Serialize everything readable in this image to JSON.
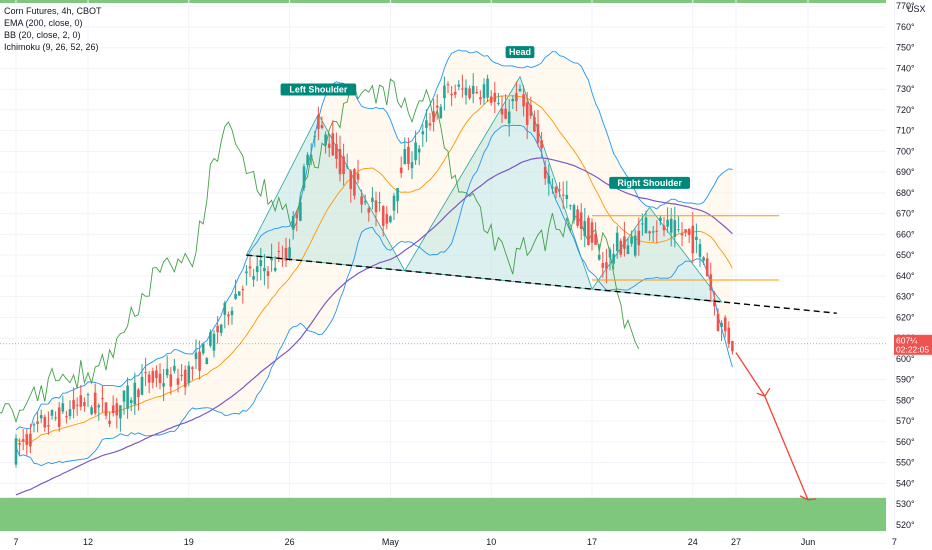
{
  "legend": {
    "symbol": "Corn Futures, 4h, CBOT",
    "ema": "EMA (200, close, 0)",
    "bb": "BB (20, close, 2, 0)",
    "ichimoku": "Ichimoku (9, 26, 52, 26)"
  },
  "currency": "USX",
  "price_tag": {
    "price": "607¼",
    "countdown": "02:22:05",
    "value": 607.25
  },
  "annotations": {
    "left_shoulder": "Left Shoulder",
    "head": "Head",
    "right_shoulder": "Right Shoulder"
  },
  "chart_data": {
    "type": "candlestick",
    "title": "Corn Futures, 4h, CBOT",
    "ylim": [
      517,
      773
    ],
    "y_ticks": [
      "770°",
      "760°",
      "750°",
      "740°",
      "730°",
      "720°",
      "710°",
      "700°",
      "690°",
      "680°",
      "670°",
      "660°",
      "650°",
      "640°",
      "630°",
      "620°",
      "610°",
      "600°",
      "590°",
      "580°",
      "570°",
      "560°",
      "550°",
      "540°",
      "530°",
      "520°"
    ],
    "y_tick_values": [
      770,
      760,
      750,
      740,
      730,
      720,
      710,
      700,
      690,
      680,
      670,
      660,
      650,
      640,
      630,
      620,
      610,
      600,
      590,
      580,
      570,
      560,
      550,
      540,
      530,
      520
    ],
    "x_ticks": [
      "7",
      "12",
      "19",
      "26",
      "May",
      "10",
      "17",
      "24",
      "27",
      "Jun",
      "7"
    ],
    "x_tick_dates": [
      "2021-04-07",
      "2021-04-12",
      "2021-04-19",
      "2021-04-26",
      "2021-05-03",
      "2021-05-10",
      "2021-05-17",
      "2021-05-24",
      "2021-05-27",
      "2021-06-01",
      "2021-06-07"
    ],
    "close_path": [
      {
        "date": "2021-04-07",
        "close": 555
      },
      {
        "date": "2021-04-09",
        "close": 568
      },
      {
        "date": "2021-04-12",
        "close": 579
      },
      {
        "date": "2021-04-14",
        "close": 574
      },
      {
        "date": "2021-04-16",
        "close": 589
      },
      {
        "date": "2021-04-19",
        "close": 592
      },
      {
        "date": "2021-04-20",
        "close": 600
      },
      {
        "date": "2021-04-21",
        "close": 610
      },
      {
        "date": "2021-04-22",
        "close": 625
      },
      {
        "date": "2021-04-23",
        "close": 638
      },
      {
        "date": "2021-04-26",
        "close": 650
      },
      {
        "date": "2021-04-27",
        "close": 680
      },
      {
        "date": "2021-04-28",
        "close": 712
      },
      {
        "date": "2021-04-29",
        "close": 705
      },
      {
        "date": "2021-04-30",
        "close": 690
      },
      {
        "date": "2021-05-03",
        "close": 666
      },
      {
        "date": "2021-05-04",
        "close": 695
      },
      {
        "date": "2021-05-05",
        "close": 700
      },
      {
        "date": "2021-05-06",
        "close": 715
      },
      {
        "date": "2021-05-07",
        "close": 728
      },
      {
        "date": "2021-05-10",
        "close": 731
      },
      {
        "date": "2021-05-11",
        "close": 715
      },
      {
        "date": "2021-05-12",
        "close": 728
      },
      {
        "date": "2021-05-13",
        "close": 715
      },
      {
        "date": "2021-05-14",
        "close": 690
      },
      {
        "date": "2021-05-17",
        "close": 660
      },
      {
        "date": "2021-05-18",
        "close": 645
      },
      {
        "date": "2021-05-19",
        "close": 655
      },
      {
        "date": "2021-05-20",
        "close": 655
      },
      {
        "date": "2021-05-21",
        "close": 666
      },
      {
        "date": "2021-05-24",
        "close": 659
      },
      {
        "date": "2021-05-25",
        "close": 650
      },
      {
        "date": "2021-05-26",
        "close": 618
      },
      {
        "date": "2021-05-27",
        "close": 607.25
      }
    ],
    "head_and_shoulders": {
      "left_shoulder": {
        "date": "2021-04-28",
        "price": 718
      },
      "head": {
        "date": "2021-05-12",
        "price": 736
      },
      "right_shoulder": {
        "date": "2021-05-21",
        "price": 673
      },
      "neckline": [
        {
          "date": "2021-04-23",
          "price": 650
        },
        {
          "date": "2021-06-03",
          "price": 622
        }
      ]
    },
    "resistance_levels": [
      669,
      638
    ],
    "projection": [
      {
        "date": "2021-05-27",
        "price": 603
      },
      {
        "date": "2021-05-29",
        "price": 582
      },
      {
        "date": "2021-06-01",
        "price": 532
      }
    ],
    "target_zone": {
      "low": 517,
      "high": 533,
      "color": "#7fc77c"
    },
    "grid": true,
    "colors": {
      "bull": "#26a69a",
      "bear": "#ef5350",
      "ema200": "#7e57c2",
      "bollinger": "#2196f3",
      "ichimoku_lagging": "#43a047",
      "ichimoku_base": "#ff9800",
      "pattern_fill": "#b2dfdb",
      "target_zone": "#7fc77c",
      "neckline": "#000000",
      "projection": "#f44336"
    }
  }
}
